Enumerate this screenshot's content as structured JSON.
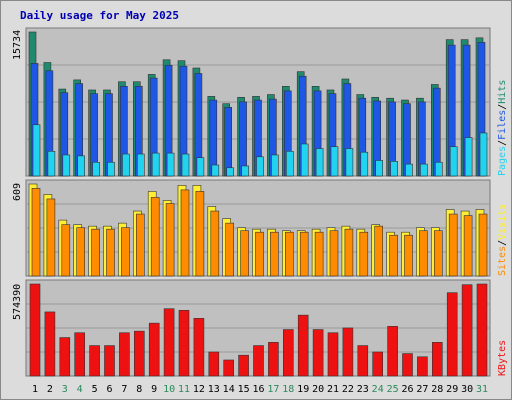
{
  "title": "Daily usage for May 2025",
  "colors": {
    "frame_bg": "#dcdcdc",
    "panel_bg": "#c0c0c0",
    "grid": "#9a9a9a",
    "title": "#0000b0",
    "hits": "#1f8a6e",
    "files": "#1e56e6",
    "pages": "#22d3f0",
    "visits": "#ffee33",
    "sites": "#ff8c00",
    "kbytes": "#ee1111",
    "weekend_label": "#2a8a5a",
    "weekday_label": "#000000"
  },
  "labels": {
    "panel1_max": "15734",
    "panel2_max": "609",
    "panel3_max": "574390",
    "pages": "Pages",
    "files": "Files",
    "hits": "Hits",
    "sites": "Sites",
    "visits": "Visits",
    "kbytes": "KBytes",
    "sep": "/"
  },
  "chart_data": {
    "type": "bar",
    "title": "Daily usage for May 2025",
    "categories": [
      "1",
      "2",
      "3",
      "4",
      "5",
      "6",
      "7",
      "8",
      "9",
      "10",
      "11",
      "12",
      "13",
      "14",
      "15",
      "16",
      "17",
      "18",
      "19",
      "20",
      "21",
      "22",
      "23",
      "24",
      "25",
      "26",
      "27",
      "28",
      "29",
      "30",
      "31"
    ],
    "weekend_days": [
      "3",
      "4",
      "10",
      "11",
      "17",
      "18",
      "24",
      "25",
      "31"
    ],
    "panels": [
      {
        "name": "requests",
        "ymax": 15734,
        "ymax_label": "15734",
        "series": [
          {
            "name": "Hits",
            "values": [
              15734,
              12400,
              9500,
              10500,
              9400,
              9400,
              10300,
              10300,
              11100,
              12700,
              12600,
              11800,
              8700,
              7900,
              8600,
              8700,
              8900,
              9800,
              11400,
              9800,
              9400,
              10600,
              8900,
              8600,
              8500,
              8300,
              8500,
              10000,
              14900,
              14900,
              15100
            ]
          },
          {
            "name": "Files",
            "values": [
              12300,
              11500,
              9100,
              10100,
              9000,
              9000,
              9800,
              9800,
              10700,
              12100,
              12000,
              11200,
              8300,
              7500,
              8100,
              8300,
              8400,
              9300,
              10900,
              9300,
              9000,
              10100,
              8500,
              8200,
              8100,
              7900,
              8100,
              9600,
              14300,
              14300,
              14600
            ]
          },
          {
            "name": "Pages",
            "values": [
              5600,
              2700,
              2300,
              2200,
              1500,
              1500,
              2400,
              2400,
              2500,
              2500,
              2400,
              2000,
              1200,
              900,
              1100,
              2100,
              2300,
              2700,
              3500,
              3000,
              3200,
              3000,
              2600,
              1700,
              1600,
              1300,
              1300,
              1500,
              3200,
              4200,
              4700
            ]
          }
        ]
      },
      {
        "name": "visitors",
        "ymax": 609,
        "ymax_label": "609",
        "series": [
          {
            "name": "Visits",
            "values": [
              609,
              540,
              370,
              340,
              330,
              330,
              350,
              430,
              560,
              500,
              600,
              600,
              460,
              380,
              320,
              310,
              310,
              300,
              300,
              310,
              320,
              330,
              310,
              340,
              290,
              290,
              320,
              320,
              440,
              430,
              440
            ]
          },
          {
            "name": "Sites",
            "values": [
              580,
              510,
              340,
              320,
              310,
              310,
              320,
              410,
              520,
              480,
              570,
              560,
              430,
              350,
              300,
              290,
              290,
              290,
              290,
              290,
              300,
              310,
              290,
              330,
              270,
              270,
              300,
              300,
              410,
              400,
              410
            ]
          }
        ]
      },
      {
        "name": "traffic",
        "ymax": 574390,
        "ymax_label": "574390",
        "series": [
          {
            "name": "KBytes",
            "values": [
              574390,
              400000,
              240000,
              270000,
              190000,
              190000,
              270000,
              280000,
              330000,
              420000,
              410000,
              360000,
              150000,
              100000,
              130000,
              190000,
              210000,
              290000,
              380000,
              290000,
              270000,
              300000,
              190000,
              150000,
              310000,
              140000,
              120000,
              210000,
              520000,
              570000,
              574390
            ]
          }
        ]
      }
    ]
  }
}
